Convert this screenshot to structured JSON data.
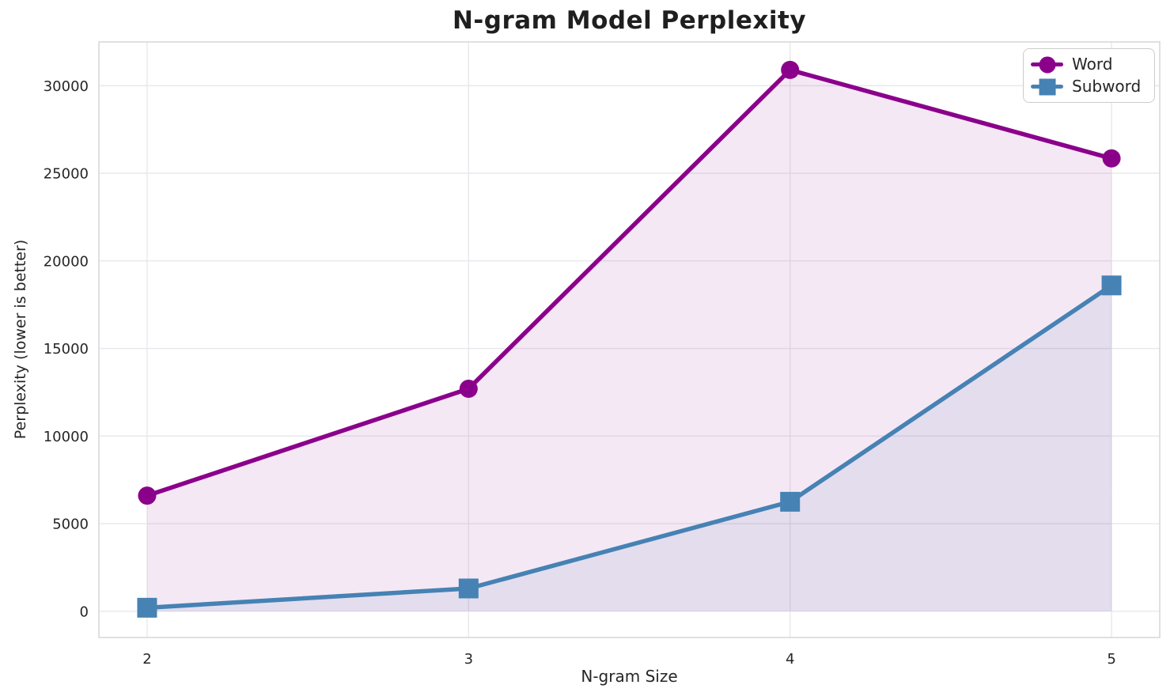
{
  "chart_data": {
    "type": "line",
    "title": "N-gram Model Perplexity",
    "xlabel": "N-gram Size",
    "ylabel": "Perplexity (lower is better)",
    "x": [
      2,
      3,
      4,
      5
    ],
    "series": [
      {
        "name": "Word",
        "marker": "circle",
        "color": "#8B008B",
        "fill_color": "rgba(139,0,139,0.09)",
        "values": [
          6600,
          12700,
          30900,
          25850
        ]
      },
      {
        "name": "Subword",
        "marker": "square",
        "color": "#4682B4",
        "fill_color": "rgba(70,130,180,0.10)",
        "values": [
          200,
          1300,
          6250,
          18600
        ]
      }
    ],
    "xticks": [
      2,
      3,
      4,
      5
    ],
    "yticks": [
      0,
      5000,
      10000,
      15000,
      20000,
      25000,
      30000
    ],
    "xlim": [
      1.85,
      5.15
    ],
    "ylim": [
      -1500,
      32500
    ],
    "area_fill_baseline": 0,
    "grid": true,
    "grid_color": "#e8e8ec",
    "spine_color": "#d9d9de",
    "tick_color": "#262626",
    "legend_position": "upper right"
  }
}
